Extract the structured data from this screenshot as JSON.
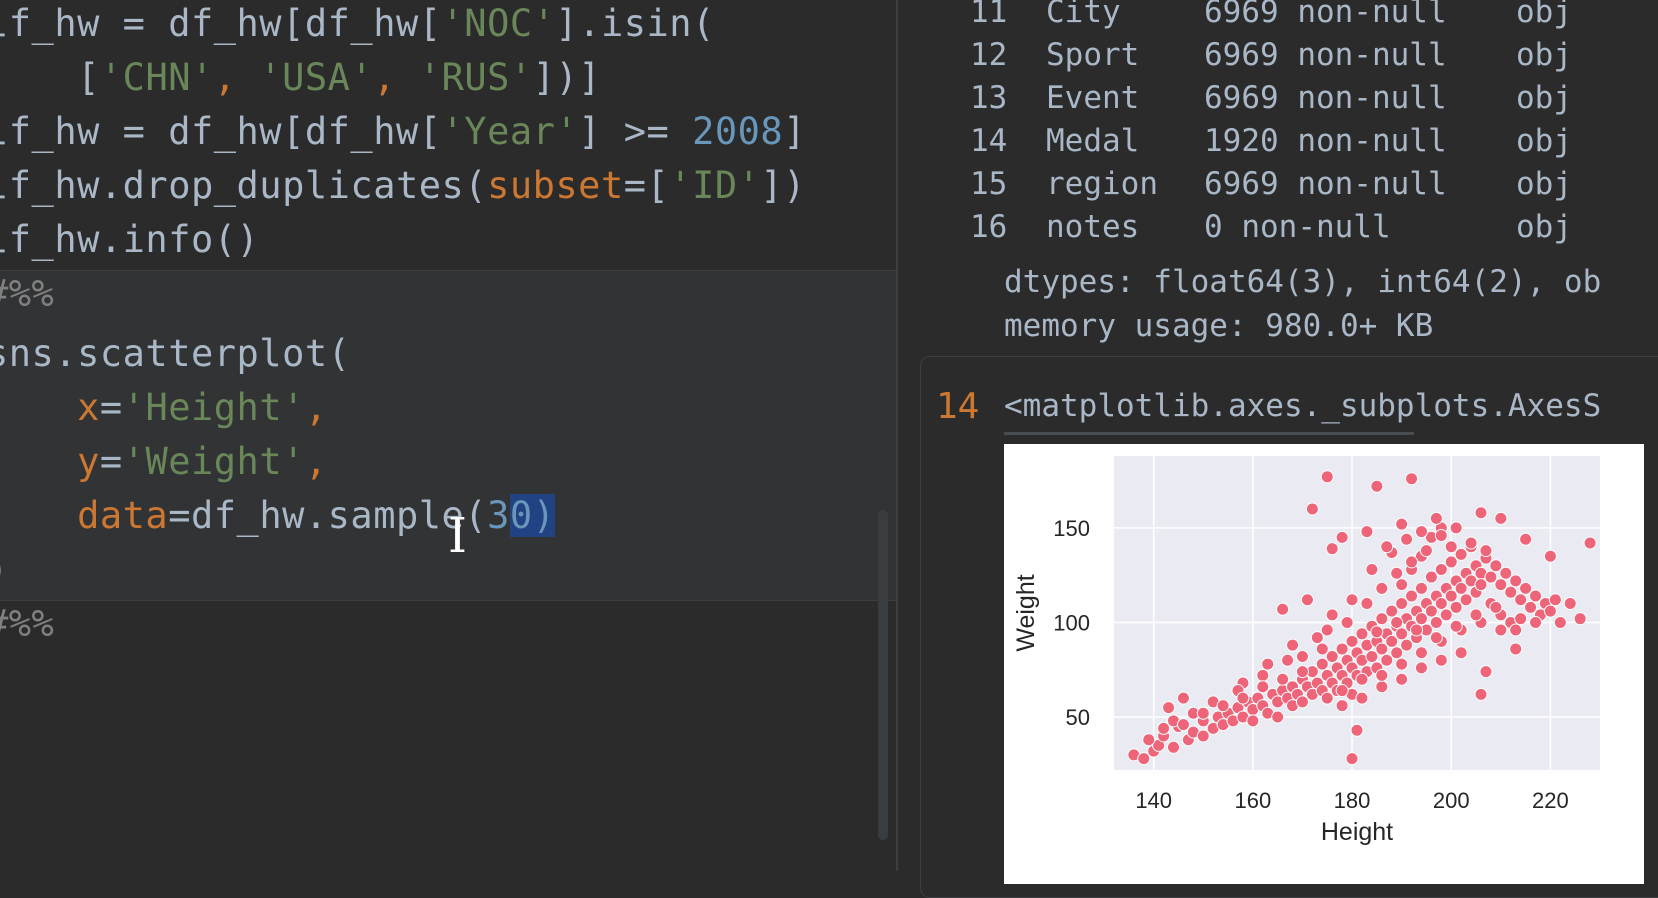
{
  "editor": {
    "lines": [
      [
        {
          "t": "lf_hw = df_hw[df_hw[",
          "c": ""
        },
        {
          "t": "'NOC'",
          "c": "str"
        },
        {
          "t": "].isin(",
          "c": ""
        }
      ],
      [
        {
          "t": "    [",
          "c": ""
        },
        {
          "t": "'CHN'",
          "c": "str"
        },
        {
          "t": ", ",
          "c": "kw"
        },
        {
          "t": "'USA'",
          "c": "str"
        },
        {
          "t": ", ",
          "c": "kw"
        },
        {
          "t": "'RUS'",
          "c": "str"
        },
        {
          "t": "])]",
          "c": ""
        }
      ],
      [
        {
          "t": "lf_hw = df_hw[df_hw[",
          "c": ""
        },
        {
          "t": "'Year'",
          "c": "str"
        },
        {
          "t": "] >= ",
          "c": ""
        },
        {
          "t": "2008",
          "c": "num"
        },
        {
          "t": "]",
          "c": ""
        }
      ],
      [
        {
          "t": "lf_hw.drop_duplicates(",
          "c": ""
        },
        {
          "t": "subset",
          "c": "param"
        },
        {
          "t": "=[",
          "c": ""
        },
        {
          "t": "'ID'",
          "c": "str"
        },
        {
          "t": "])",
          "c": ""
        }
      ],
      [
        {
          "t": "lf_hw.info()",
          "c": ""
        }
      ],
      [
        {
          "t": "#%%",
          "c": "marker"
        }
      ],
      [
        {
          "t": "sns.scatterplot(",
          "c": ""
        }
      ],
      [
        {
          "t": "    ",
          "c": ""
        },
        {
          "t": "x",
          "c": "param"
        },
        {
          "t": "=",
          "c": ""
        },
        {
          "t": "'Height'",
          "c": "str"
        },
        {
          "t": ",",
          "c": "kw"
        }
      ],
      [
        {
          "t": "    ",
          "c": ""
        },
        {
          "t": "y",
          "c": "param"
        },
        {
          "t": "=",
          "c": ""
        },
        {
          "t": "'Weight'",
          "c": "str"
        },
        {
          "t": ",",
          "c": "kw"
        }
      ],
      [
        {
          "t": "    ",
          "c": ""
        },
        {
          "t": "data",
          "c": "param"
        },
        {
          "t": "=df_hw.sample(",
          "c": ""
        },
        {
          "t": "3",
          "c": "num"
        },
        {
          "t": "0",
          "c": "sel"
        },
        {
          "t": ")",
          "c": "sel"
        }
      ],
      [
        {
          "t": ")",
          "c": ""
        }
      ],
      [
        {
          "t": "#%%",
          "c": "marker"
        }
      ]
    ]
  },
  "info_rows": [
    {
      "idx": "11",
      "col": "City",
      "count": "6969 non-null",
      "dtype": "obj"
    },
    {
      "idx": "12",
      "col": "Sport",
      "count": "6969 non-null",
      "dtype": "obj"
    },
    {
      "idx": "13",
      "col": "Event",
      "count": "6969 non-null",
      "dtype": "obj"
    },
    {
      "idx": "14",
      "col": "Medal",
      "count": "1920 non-null",
      "dtype": "obj"
    },
    {
      "idx": "15",
      "col": "region",
      "count": "6969 non-null",
      "dtype": "obj"
    },
    {
      "idx": "16",
      "col": "notes",
      "count": "0 non-null",
      "dtype": "obj"
    }
  ],
  "info_footer": {
    "dtypes": "dtypes: float64(3), int64(2), ob",
    "memory": "memory usage: 980.0+ KB"
  },
  "output_cell": {
    "exec_count": "14",
    "text": "<matplotlib.axes._subplots.AxesS"
  },
  "chart_data": {
    "type": "scatter",
    "xlabel": "Height",
    "ylabel": "Weight",
    "xticks": [
      140,
      160,
      180,
      200,
      220
    ],
    "yticks": [
      50,
      100,
      150
    ],
    "xlim": [
      132,
      230
    ],
    "ylim": [
      22,
      188
    ],
    "grid": true,
    "color": "#ee6479",
    "background": "#eaeaf2",
    "points": [
      [
        136,
        30
      ],
      [
        138,
        28
      ],
      [
        140,
        32
      ],
      [
        141,
        35
      ],
      [
        142,
        40
      ],
      [
        144,
        34
      ],
      [
        145,
        45
      ],
      [
        147,
        38
      ],
      [
        148,
        42
      ],
      [
        150,
        48
      ],
      [
        150,
        40
      ],
      [
        152,
        44
      ],
      [
        153,
        50
      ],
      [
        154,
        46
      ],
      [
        155,
        52
      ],
      [
        156,
        48
      ],
      [
        157,
        55
      ],
      [
        158,
        50
      ],
      [
        159,
        58
      ],
      [
        160,
        54
      ],
      [
        160,
        48
      ],
      [
        161,
        60
      ],
      [
        162,
        56
      ],
      [
        163,
        52
      ],
      [
        164,
        62
      ],
      [
        165,
        58
      ],
      [
        165,
        50
      ],
      [
        166,
        64
      ],
      [
        167,
        60
      ],
      [
        168,
        56
      ],
      [
        168,
        66
      ],
      [
        169,
        62
      ],
      [
        170,
        58
      ],
      [
        170,
        70
      ],
      [
        171,
        66
      ],
      [
        172,
        62
      ],
      [
        172,
        74
      ],
      [
        173,
        68
      ],
      [
        174,
        64
      ],
      [
        174,
        78
      ],
      [
        175,
        72
      ],
      [
        175,
        60
      ],
      [
        176,
        68
      ],
      [
        176,
        82
      ],
      [
        177,
        76
      ],
      [
        177,
        64
      ],
      [
        178,
        72
      ],
      [
        178,
        86
      ],
      [
        179,
        80
      ],
      [
        179,
        68
      ],
      [
        180,
        76
      ],
      [
        180,
        90
      ],
      [
        180,
        62
      ],
      [
        181,
        84
      ],
      [
        181,
        72
      ],
      [
        182,
        80
      ],
      [
        182,
        94
      ],
      [
        183,
        88
      ],
      [
        183,
        74
      ],
      [
        184,
        82
      ],
      [
        184,
        98
      ],
      [
        185,
        90
      ],
      [
        185,
        76
      ],
      [
        186,
        86
      ],
      [
        186,
        102
      ],
      [
        187,
        94
      ],
      [
        187,
        80
      ],
      [
        188,
        90
      ],
      [
        188,
        106
      ],
      [
        189,
        98
      ],
      [
        189,
        84
      ],
      [
        190,
        94
      ],
      [
        190,
        110
      ],
      [
        190,
        120
      ],
      [
        191,
        102
      ],
      [
        191,
        88
      ],
      [
        192,
        98
      ],
      [
        192,
        114
      ],
      [
        192,
        128
      ],
      [
        193,
        106
      ],
      [
        193,
        92
      ],
      [
        194,
        102
      ],
      [
        194,
        118
      ],
      [
        194,
        135
      ],
      [
        195,
        110
      ],
      [
        195,
        96
      ],
      [
        196,
        106
      ],
      [
        196,
        124
      ],
      [
        196,
        145
      ],
      [
        197,
        114
      ],
      [
        197,
        100
      ],
      [
        198,
        110
      ],
      [
        198,
        128
      ],
      [
        198,
        150
      ],
      [
        199,
        118
      ],
      [
        199,
        104
      ],
      [
        200,
        114
      ],
      [
        200,
        132
      ],
      [
        200,
        140
      ],
      [
        201,
        122
      ],
      [
        201,
        108
      ],
      [
        202,
        118
      ],
      [
        202,
        136
      ],
      [
        203,
        126
      ],
      [
        203,
        112
      ],
      [
        204,
        122
      ],
      [
        204,
        140
      ],
      [
        205,
        130
      ],
      [
        205,
        116
      ],
      [
        206,
        126
      ],
      [
        206,
        120
      ],
      [
        207,
        134
      ],
      [
        208,
        124
      ],
      [
        208,
        110
      ],
      [
        209,
        130
      ],
      [
        210,
        120
      ],
      [
        210,
        104
      ],
      [
        211,
        126
      ],
      [
        212,
        116
      ],
      [
        212,
        100
      ],
      [
        213,
        122
      ],
      [
        214,
        112
      ],
      [
        215,
        118
      ],
      [
        216,
        108
      ],
      [
        217,
        114
      ],
      [
        218,
        104
      ],
      [
        219,
        110
      ],
      [
        220,
        106
      ],
      [
        221,
        112
      ],
      [
        222,
        100
      ],
      [
        224,
        110
      ],
      [
        226,
        102
      ],
      [
        228,
        142
      ],
      [
        206,
        158
      ],
      [
        192,
        176
      ],
      [
        185,
        172
      ],
      [
        175,
        177
      ],
      [
        172,
        160
      ],
      [
        188,
        137
      ],
      [
        176,
        139
      ],
      [
        178,
        145
      ],
      [
        215,
        144
      ],
      [
        220,
        135
      ],
      [
        210,
        155
      ],
      [
        197,
        155
      ],
      [
        190,
        152
      ],
      [
        183,
        148
      ],
      [
        207,
        74
      ],
      [
        181,
        43
      ],
      [
        180,
        28
      ],
      [
        206,
        62
      ],
      [
        213,
        86
      ],
      [
        171,
        112
      ],
      [
        166,
        107
      ],
      [
        158,
        68
      ],
      [
        146,
        60
      ],
      [
        143,
        55
      ],
      [
        173,
        92
      ],
      [
        168,
        88
      ],
      [
        163,
        78
      ],
      [
        170,
        82
      ],
      [
        175,
        96
      ],
      [
        179,
        100
      ],
      [
        183,
        110
      ],
      [
        186,
        118
      ],
      [
        189,
        126
      ],
      [
        192,
        132
      ],
      [
        195,
        138
      ],
      [
        198,
        146
      ],
      [
        201,
        150
      ],
      [
        204,
        142
      ],
      [
        207,
        138
      ],
      [
        178,
        56
      ],
      [
        182,
        60
      ],
      [
        186,
        66
      ],
      [
        190,
        70
      ],
      [
        194,
        76
      ],
      [
        198,
        80
      ],
      [
        202,
        84
      ],
      [
        184,
        128
      ],
      [
        187,
        140
      ],
      [
        191,
        144
      ],
      [
        194,
        148
      ],
      [
        176,
        104
      ],
      [
        180,
        112
      ],
      [
        167,
        80
      ],
      [
        162,
        72
      ],
      [
        157,
        64
      ],
      [
        152,
        58
      ],
      [
        148,
        52
      ],
      [
        144,
        48
      ],
      [
        139,
        38
      ],
      [
        186,
        72
      ],
      [
        190,
        78
      ],
      [
        194,
        84
      ],
      [
        198,
        90
      ],
      [
        202,
        96
      ],
      [
        206,
        100
      ],
      [
        210,
        96
      ],
      [
        214,
        102
      ],
      [
        185,
        95
      ],
      [
        189,
        100
      ],
      [
        193,
        96
      ],
      [
        197,
        92
      ],
      [
        201,
        98
      ],
      [
        205,
        104
      ],
      [
        209,
        108
      ],
      [
        213,
        96
      ],
      [
        217,
        100
      ],
      [
        174,
        86
      ],
      [
        170,
        74
      ],
      [
        166,
        70
      ],
      [
        162,
        66
      ],
      [
        158,
        60
      ],
      [
        154,
        56
      ],
      [
        150,
        52
      ],
      [
        146,
        46
      ],
      [
        142,
        44
      ],
      [
        178,
        64
      ],
      [
        182,
        70
      ]
    ]
  }
}
